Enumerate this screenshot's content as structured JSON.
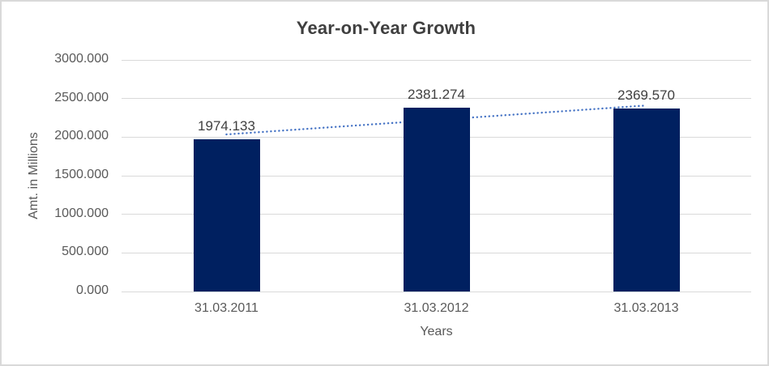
{
  "chart_data": {
    "type": "bar",
    "title": "Year-on-Year Growth",
    "xlabel": "Years",
    "ylabel": "Amt. in Millions",
    "categories": [
      "31.03.2011",
      "31.03.2012",
      "31.03.2013"
    ],
    "values": [
      1974.133,
      2381.274,
      2369.57
    ],
    "value_labels": [
      "1974.133",
      "2381.274",
      "2369.570"
    ],
    "ylim": [
      0,
      3000
    ],
    "yticks": [
      0,
      500,
      1000,
      1500,
      2000,
      2500,
      3000
    ],
    "ytick_labels": [
      "0.000",
      "500.000",
      "1000.000",
      "1500.000",
      "2000.000",
      "2500.000",
      "3000.000"
    ],
    "grid": true,
    "legend": "none",
    "bar_color": "#002060",
    "trendline": {
      "type": "linear",
      "style": "dotted",
      "color": "#4472C4",
      "start_value": 2035,
      "end_value": 2410
    },
    "colors": {
      "title_text": "#3f3f3f",
      "axis_text": "#595959",
      "data_label_text": "#404040",
      "gridline": "#d9d9d9",
      "background": "#ffffff",
      "border": "#d9d9d9"
    }
  }
}
